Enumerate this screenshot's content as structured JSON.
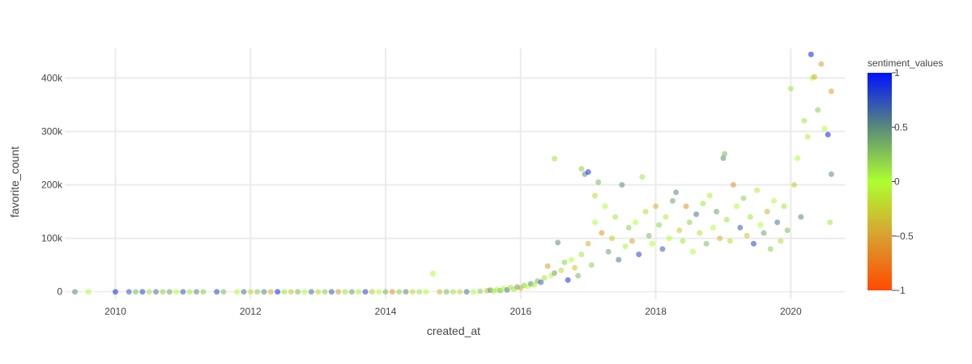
{
  "chart_data": {
    "type": "scatter",
    "title": "",
    "xlabel": "created_at",
    "ylabel": "favorite_count",
    "x_ticks": [
      "2010",
      "2012",
      "2014",
      "2016",
      "2018",
      "2020"
    ],
    "x_tick_values": [
      2010,
      2012,
      2014,
      2016,
      2018,
      2020
    ],
    "y_ticks": [
      "0",
      "100k",
      "200k",
      "300k",
      "400k"
    ],
    "y_tick_values": [
      0,
      100000,
      200000,
      300000,
      400000
    ],
    "xlim": [
      2009.25,
      2020.8
    ],
    "ylim": [
      -14000,
      455000
    ],
    "grid": true,
    "marker_opacity": 0.55,
    "colorbar": {
      "title": "sentiment_values",
      "range": [
        -1,
        1
      ],
      "ticks": [
        "1",
        "0.5",
        "0",
        "−0.5",
        "−1"
      ],
      "tick_values": [
        1,
        0.5,
        0,
        -0.5,
        -1
      ],
      "colorscale": [
        [
          0,
          "#ff4a00"
        ],
        [
          0.25,
          "#d9a030"
        ],
        [
          0.5,
          "#adff2f"
        ],
        [
          0.75,
          "#5a8a7a"
        ],
        [
          1,
          "#0011ff"
        ]
      ]
    },
    "points": [
      [
        2009.4,
        0,
        0.5
      ],
      [
        2009.6,
        0,
        0.0
      ],
      [
        2010.0,
        0,
        0.9
      ],
      [
        2010.2,
        0,
        0.7
      ],
      [
        2010.3,
        0,
        0.3
      ],
      [
        2010.4,
        0,
        0.8
      ],
      [
        2010.5,
        0,
        0.1
      ],
      [
        2010.6,
        0,
        0.6
      ],
      [
        2010.7,
        0,
        0.2
      ],
      [
        2010.8,
        0,
        0.4
      ],
      [
        2010.9,
        0,
        0.0
      ],
      [
        2011.0,
        0,
        0.7
      ],
      [
        2011.1,
        0,
        0.1
      ],
      [
        2011.2,
        0,
        0.5
      ],
      [
        2011.3,
        0,
        0.2
      ],
      [
        2011.5,
        0,
        0.8
      ],
      [
        2011.6,
        0,
        0.3
      ],
      [
        2011.8,
        0,
        0.0
      ],
      [
        2011.9,
        0,
        0.6
      ],
      [
        2012.0,
        0,
        -0.2
      ],
      [
        2012.1,
        0,
        0.2
      ],
      [
        2012.2,
        0,
        0.5
      ],
      [
        2012.3,
        0,
        -0.4
      ],
      [
        2012.4,
        0,
        0.9
      ],
      [
        2012.5,
        0,
        0.1
      ],
      [
        2012.6,
        0,
        -0.3
      ],
      [
        2012.7,
        0,
        0.3
      ],
      [
        2012.8,
        0,
        0.0
      ],
      [
        2012.9,
        0,
        0.6
      ],
      [
        2013.0,
        0,
        -0.2
      ],
      [
        2013.1,
        0,
        0.2
      ],
      [
        2013.2,
        0,
        0.7
      ],
      [
        2013.3,
        0,
        -0.5
      ],
      [
        2013.4,
        0,
        0.1
      ],
      [
        2013.5,
        0,
        0.4
      ],
      [
        2013.6,
        0,
        -0.1
      ],
      [
        2013.7,
        0,
        0.8
      ],
      [
        2013.8,
        0,
        -0.3
      ],
      [
        2013.9,
        0,
        0.0
      ],
      [
        2014.0,
        0,
        0.3
      ],
      [
        2014.1,
        0,
        -0.6
      ],
      [
        2014.2,
        0,
        0.2
      ],
      [
        2014.3,
        0,
        0.5
      ],
      [
        2014.4,
        0,
        -0.2
      ],
      [
        2014.5,
        0,
        0.1
      ],
      [
        2014.6,
        0,
        0.0
      ],
      [
        2014.7,
        34000,
        0.0
      ],
      [
        2014.8,
        0,
        -0.4
      ],
      [
        2014.9,
        0,
        0.3
      ],
      [
        2015.0,
        0,
        0.1
      ],
      [
        2015.1,
        0,
        -0.2
      ],
      [
        2015.2,
        0,
        0.6
      ],
      [
        2015.3,
        0,
        0.0
      ],
      [
        2015.4,
        1000,
        0.2
      ],
      [
        2015.5,
        2000,
        -0.3
      ],
      [
        2015.55,
        3000,
        0.5
      ],
      [
        2015.6,
        1500,
        0.1
      ],
      [
        2015.65,
        4000,
        -0.1
      ],
      [
        2015.7,
        2500,
        0.3
      ],
      [
        2015.75,
        6000,
        0.0
      ],
      [
        2015.8,
        3500,
        0.6
      ],
      [
        2015.85,
        8000,
        -0.2
      ],
      [
        2015.9,
        5000,
        0.1
      ],
      [
        2015.95,
        9000,
        0.4
      ],
      [
        2016.0,
        7000,
        -0.4
      ],
      [
        2016.05,
        12000,
        0.2
      ],
      [
        2016.1,
        10000,
        0.0
      ],
      [
        2016.15,
        15000,
        0.5
      ],
      [
        2016.2,
        13000,
        -0.1
      ],
      [
        2016.25,
        20000,
        0.3
      ],
      [
        2016.3,
        18000,
        0.7
      ],
      [
        2016.35,
        26000,
        0.1
      ],
      [
        2016.4,
        48000,
        -0.5
      ],
      [
        2016.45,
        30000,
        0.0
      ],
      [
        2016.5,
        249000,
        0.1
      ],
      [
        2016.5,
        35000,
        0.4
      ],
      [
        2016.55,
        92000,
        0.5
      ],
      [
        2016.6,
        40000,
        -0.2
      ],
      [
        2016.65,
        55000,
        0.2
      ],
      [
        2016.7,
        22000,
        0.9
      ],
      [
        2016.75,
        60000,
        0.0
      ],
      [
        2016.8,
        45000,
        -0.3
      ],
      [
        2016.85,
        30000,
        0.3
      ],
      [
        2016.9,
        230000,
        0.2
      ],
      [
        2016.9,
        70000,
        0.1
      ],
      [
        2016.95,
        220000,
        0.5
      ],
      [
        2017.0,
        90000,
        -0.4
      ],
      [
        2017.0,
        224000,
        0.9
      ],
      [
        2017.05,
        50000,
        0.2
      ],
      [
        2017.1,
        130000,
        0.0
      ],
      [
        2017.1,
        180000,
        -0.2
      ],
      [
        2017.15,
        205000,
        0.3
      ],
      [
        2017.2,
        110000,
        -0.6
      ],
      [
        2017.25,
        160000,
        0.0
      ],
      [
        2017.3,
        75000,
        0.4
      ],
      [
        2017.35,
        100000,
        -0.3
      ],
      [
        2017.4,
        140000,
        0.1
      ],
      [
        2017.45,
        60000,
        0.6
      ],
      [
        2017.5,
        200000,
        0.5
      ],
      [
        2017.55,
        85000,
        -0.1
      ],
      [
        2017.6,
        120000,
        0.2
      ],
      [
        2017.65,
        95000,
        -0.5
      ],
      [
        2017.7,
        130000,
        0.0
      ],
      [
        2017.75,
        70000,
        0.8
      ],
      [
        2017.8,
        215000,
        0.1
      ],
      [
        2017.85,
        150000,
        -0.2
      ],
      [
        2017.9,
        105000,
        0.3
      ],
      [
        2017.95,
        90000,
        0.0
      ],
      [
        2018.0,
        160000,
        -0.4
      ],
      [
        2018.05,
        125000,
        0.2
      ],
      [
        2018.1,
        80000,
        0.7
      ],
      [
        2018.15,
        140000,
        -0.1
      ],
      [
        2018.2,
        100000,
        0.0
      ],
      [
        2018.25,
        170000,
        0.4
      ],
      [
        2018.3,
        186000,
        0.5
      ],
      [
        2018.35,
        115000,
        -0.3
      ],
      [
        2018.4,
        95000,
        0.1
      ],
      [
        2018.45,
        160000,
        -0.6
      ],
      [
        2018.5,
        130000,
        0.2
      ],
      [
        2018.55,
        75000,
        0.0
      ],
      [
        2018.6,
        145000,
        0.6
      ],
      [
        2018.65,
        110000,
        -0.2
      ],
      [
        2018.7,
        165000,
        0.1
      ],
      [
        2018.75,
        90000,
        0.3
      ],
      [
        2018.8,
        180000,
        -0.1
      ],
      [
        2018.85,
        120000,
        0.0
      ],
      [
        2018.9,
        150000,
        0.4
      ],
      [
        2018.95,
        100000,
        -0.4
      ],
      [
        2019.0,
        250000,
        0.5
      ],
      [
        2019.02,
        258000,
        0.3
      ],
      [
        2019.05,
        135000,
        0.1
      ],
      [
        2019.1,
        95000,
        -0.2
      ],
      [
        2019.15,
        200000,
        -0.6
      ],
      [
        2019.2,
        160000,
        0.0
      ],
      [
        2019.25,
        120000,
        0.7
      ],
      [
        2019.3,
        175000,
        0.2
      ],
      [
        2019.35,
        105000,
        -0.3
      ],
      [
        2019.4,
        140000,
        0.1
      ],
      [
        2019.45,
        90000,
        0.8
      ],
      [
        2019.5,
        190000,
        -0.1
      ],
      [
        2019.55,
        125000,
        0.0
      ],
      [
        2019.6,
        110000,
        0.4
      ],
      [
        2019.65,
        150000,
        -0.4
      ],
      [
        2019.7,
        80000,
        0.2
      ],
      [
        2019.75,
        170000,
        0.0
      ],
      [
        2019.8,
        130000,
        0.6
      ],
      [
        2019.85,
        95000,
        -0.2
      ],
      [
        2019.9,
        160000,
        0.1
      ],
      [
        2019.95,
        115000,
        0.3
      ],
      [
        2020.0,
        380000,
        0.1
      ],
      [
        2020.05,
        200000,
        -0.3
      ],
      [
        2020.1,
        250000,
        0.0
      ],
      [
        2020.15,
        140000,
        0.5
      ],
      [
        2020.2,
        320000,
        0.1
      ],
      [
        2020.25,
        290000,
        -0.1
      ],
      [
        2020.3,
        444000,
        0.95
      ],
      [
        2020.32,
        400000,
        0.0
      ],
      [
        2020.35,
        402000,
        -0.4
      ],
      [
        2020.4,
        340000,
        0.2
      ],
      [
        2020.45,
        426000,
        -0.5
      ],
      [
        2020.5,
        305000,
        0.0
      ],
      [
        2020.55,
        294000,
        0.95
      ],
      [
        2020.6,
        375000,
        -0.5
      ],
      [
        2020.6,
        220000,
        0.5
      ],
      [
        2020.58,
        130000,
        0.1
      ]
    ]
  }
}
